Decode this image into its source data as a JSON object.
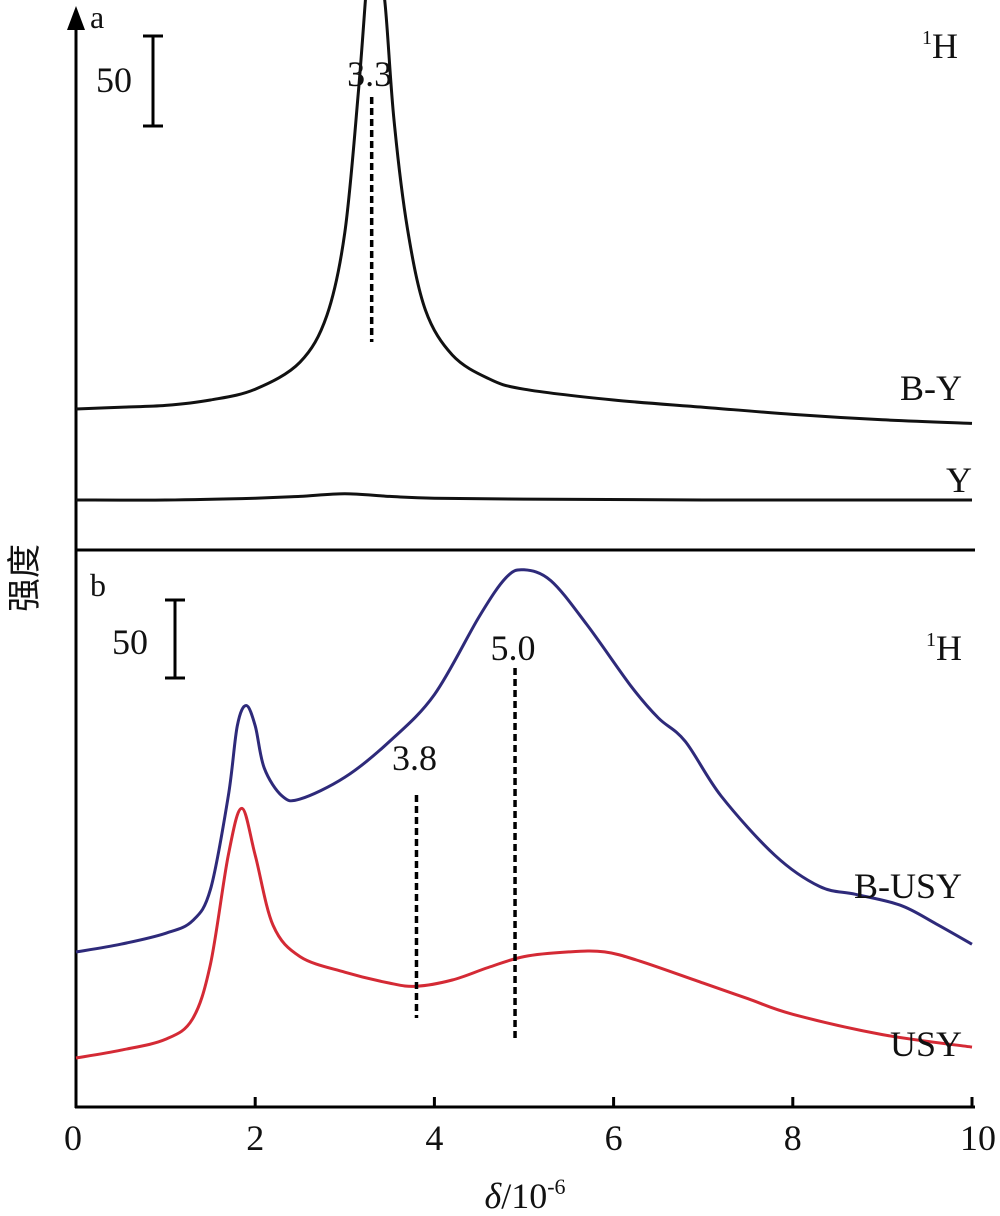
{
  "chart_data": [
    {
      "type": "line",
      "panel_label": "a",
      "nucleus_label": "1H",
      "scale_bar_label": "50",
      "scale_bar_value": 50,
      "xlim": [
        0,
        10
      ],
      "series": [
        {
          "name": "B-Y",
          "color": "#111111",
          "points": [
            [
              0,
              0
            ],
            [
              0.5,
              1
            ],
            [
              1,
              2
            ],
            [
              1.5,
              5
            ],
            [
              2,
              11
            ],
            [
              2.5,
              26
            ],
            [
              2.8,
              52
            ],
            [
              3,
              98
            ],
            [
              3.15,
              175
            ],
            [
              3.25,
              240
            ],
            [
              3.3,
              260
            ],
            [
              3.35,
              262
            ],
            [
              3.45,
              225
            ],
            [
              3.55,
              160
            ],
            [
              3.7,
              100
            ],
            [
              3.9,
              55
            ],
            [
              4.2,
              30
            ],
            [
              4.6,
              17
            ],
            [
              5,
              11
            ],
            [
              6,
              5
            ],
            [
              7,
              1
            ],
            [
              8,
              -3
            ],
            [
              9,
              -6
            ],
            [
              10,
              -8
            ]
          ]
        },
        {
          "name": "Y",
          "color": "#111111",
          "points": [
            [
              0,
              0
            ],
            [
              1,
              0
            ],
            [
              2,
              1
            ],
            [
              2.5,
              2
            ],
            [
              3,
              3.5
            ],
            [
              3.5,
              2
            ],
            [
              4,
              1
            ],
            [
              5,
              0.5
            ],
            [
              7,
              0
            ],
            [
              10,
              0
            ]
          ]
        }
      ],
      "annotations": [
        {
          "label": "3.3",
          "x": 3.3
        }
      ]
    },
    {
      "type": "line",
      "panel_label": "b",
      "nucleus_label": "1H",
      "scale_bar_label": "50",
      "scale_bar_value": 50,
      "xlim": [
        0,
        10
      ],
      "xlabel_italic": "δ",
      "xlabel_rest": "/10",
      "xlabel_sup": "-6",
      "ylabel": "强度",
      "xticks": [
        "0",
        "2",
        "4",
        "6",
        "8",
        "10"
      ],
      "series": [
        {
          "name": "B-USY",
          "color": "#2e2a7a",
          "points": [
            [
              0,
              0
            ],
            [
              0.5,
              5
            ],
            [
              1,
              12
            ],
            [
              1.3,
              20
            ],
            [
              1.5,
              40
            ],
            [
              1.7,
              100
            ],
            [
              1.8,
              145
            ],
            [
              1.9,
              158
            ],
            [
              2,
              145
            ],
            [
              2.1,
              118
            ],
            [
              2.3,
              100
            ],
            [
              2.5,
              98
            ],
            [
              3,
              112
            ],
            [
              3.5,
              135
            ],
            [
              4,
              165
            ],
            [
              4.5,
              215
            ],
            [
              4.8,
              240
            ],
            [
              5,
              245
            ],
            [
              5.3,
              238
            ],
            [
              5.7,
              210
            ],
            [
              6.2,
              170
            ],
            [
              6.5,
              150
            ],
            [
              6.8,
              135
            ],
            [
              7.2,
              100
            ],
            [
              7.8,
              62
            ],
            [
              8.3,
              42
            ],
            [
              8.7,
              37
            ],
            [
              9.2,
              30
            ],
            [
              9.6,
              18
            ],
            [
              10,
              5
            ]
          ]
        },
        {
          "name": "USY",
          "color": "#d42a35",
          "points": [
            [
              0,
              0
            ],
            [
              0.5,
              5
            ],
            [
              1,
              12
            ],
            [
              1.3,
              25
            ],
            [
              1.5,
              60
            ],
            [
              1.7,
              130
            ],
            [
              1.85,
              160
            ],
            [
              2,
              130
            ],
            [
              2.2,
              85
            ],
            [
              2.5,
              65
            ],
            [
              3,
              55
            ],
            [
              3.5,
              48
            ],
            [
              3.8,
              46
            ],
            [
              4.2,
              50
            ],
            [
              4.6,
              58
            ],
            [
              5,
              65
            ],
            [
              5.5,
              68
            ],
            [
              5.9,
              68
            ],
            [
              6.3,
              62
            ],
            [
              7,
              48
            ],
            [
              7.5,
              38
            ],
            [
              8,
              28
            ],
            [
              9,
              15
            ],
            [
              10,
              7
            ]
          ]
        }
      ],
      "annotations": [
        {
          "label": "3.8",
          "x": 3.8
        },
        {
          "label": "5.0",
          "x": 4.9
        }
      ]
    }
  ]
}
